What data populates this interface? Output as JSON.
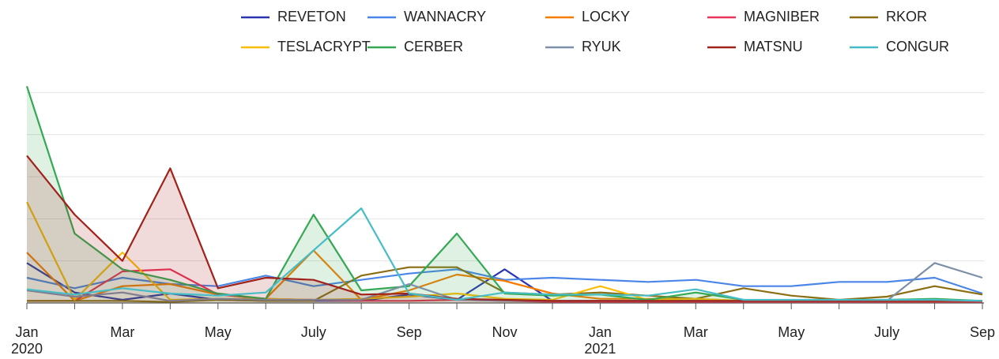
{
  "chart_data": {
    "type": "line",
    "categories": [
      "Jan",
      null,
      "Mar",
      null,
      "May",
      null,
      "July",
      null,
      "Sep",
      null,
      "Nov",
      null,
      "Jan",
      null,
      "Mar",
      null,
      "May",
      null,
      "July",
      null,
      "Sep"
    ],
    "years": [
      "2020",
      null,
      null,
      null,
      null,
      null,
      null,
      null,
      null,
      null,
      null,
      null,
      "2021",
      null,
      null,
      null,
      null,
      null,
      null,
      null,
      null
    ],
    "ylim": [
      0,
      105
    ],
    "yticks": [
      0,
      20,
      40,
      60,
      80,
      100
    ],
    "grid": true,
    "series": [
      {
        "name": "REVETON",
        "color": "#2b35af",
        "values": [
          19,
          5,
          1.5,
          4.5,
          1.5,
          1,
          1,
          1,
          4,
          1.5,
          16,
          1,
          1,
          1,
          1,
          1,
          1,
          1,
          1,
          1,
          1
        ]
      },
      {
        "name": "WANNACRY",
        "color": "#4a86e8",
        "values": [
          12,
          7,
          12,
          9,
          8,
          13,
          8,
          11,
          14,
          16,
          11,
          12,
          11,
          10,
          11,
          8,
          8,
          10,
          10,
          12,
          4.5
        ]
      },
      {
        "name": "LOCKY",
        "color": "#f57c00",
        "values": [
          24,
          1,
          8,
          9,
          4,
          2,
          25,
          1.5,
          6,
          13.5,
          10.5,
          4.5,
          2,
          2,
          2,
          1,
          1,
          1,
          1,
          1,
          1
        ]
      },
      {
        "name": "MAGNIBER",
        "color": "#e8335a",
        "values": [
          1,
          1,
          15,
          16,
          4,
          2,
          1.5,
          1,
          1,
          1.5,
          1,
          0.5,
          0.5,
          0.5,
          0.5,
          0.5,
          0.5,
          0.5,
          0.5,
          0.5,
          0.5
        ]
      },
      {
        "name": "RKOR",
        "color": "#8b6d12",
        "values": [
          1,
          1,
          1,
          0.5,
          1.5,
          1,
          1,
          13,
          17,
          17,
          5,
          4,
          5,
          3.5,
          2,
          7,
          3.5,
          1.5,
          3,
          8,
          4
        ]
      },
      {
        "name": "TESLACRYPT",
        "color": "#fbbc04",
        "values": [
          48,
          1.5,
          24,
          1.5,
          2,
          2,
          1.5,
          2,
          3,
          4.5,
          2,
          1.5,
          8,
          1.5,
          2,
          1,
          1,
          1,
          1,
          1,
          1
        ]
      },
      {
        "name": "CERBER",
        "color": "#34a853",
        "area": true,
        "values": [
          103,
          33,
          16,
          11,
          4.5,
          2,
          42,
          6,
          8,
          33,
          4.5,
          3.5,
          4,
          1.5,
          5,
          1.5,
          1,
          1,
          1.5,
          2,
          1
        ]
      },
      {
        "name": "RYUK",
        "color": "#7b8fa6",
        "values": [
          6,
          3,
          5,
          1,
          2,
          1.5,
          1.5,
          1.5,
          9,
          1.5,
          1,
          1,
          1,
          1,
          1,
          1,
          1,
          1,
          1,
          19,
          12
        ]
      },
      {
        "name": "MATSNU",
        "color": "#a0221b",
        "area": true,
        "values": [
          70,
          42,
          20,
          64,
          7,
          12,
          11,
          4,
          4.5,
          2,
          1.5,
          1,
          1,
          1,
          1,
          1,
          1,
          1,
          1,
          1,
          1
        ]
      },
      {
        "name": "CONGUR",
        "color": "#46bdc6",
        "values": [
          6.5,
          4,
          7,
          4.5,
          3.5,
          5,
          25,
          45,
          4.5,
          1.5,
          5,
          4,
          4,
          3.5,
          6.5,
          1.5,
          1.5,
          1.5,
          1.5,
          1.5,
          1
        ]
      }
    ]
  }
}
